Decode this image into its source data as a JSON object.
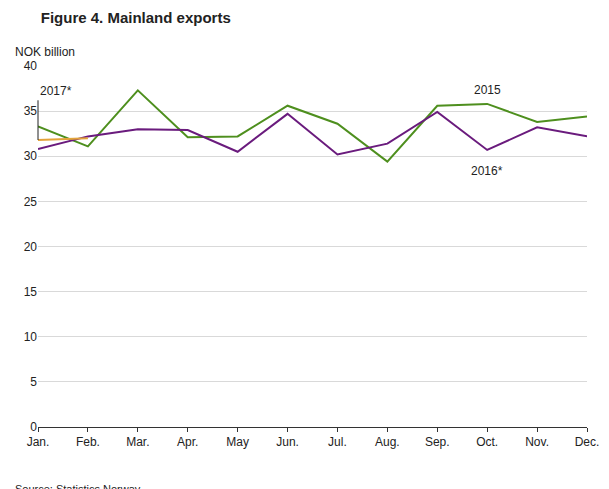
{
  "chart_data": {
    "type": "line",
    "title": "Figure 4. Mainland exports",
    "y_label": "NOK billion",
    "source": "Source: Statistics Norway.",
    "categories": [
      "Jan.",
      "Feb.",
      "Mar.",
      "Apr.",
      "May",
      "Jun.",
      "Jul.",
      "Aug.",
      "Sep.",
      "Oct.",
      "Nov.",
      "Dec."
    ],
    "series": [
      {
        "name": "2015",
        "color": "#4e8f1e",
        "values": [
          33.3,
          31.1,
          37.3,
          32.1,
          32.2,
          35.6,
          33.6,
          29.4,
          35.6,
          35.8,
          33.8,
          34.4
        ]
      },
      {
        "name": "2016*",
        "color": "#6a1b7d",
        "values": [
          30.8,
          32.2,
          33.0,
          32.9,
          30.5,
          34.7,
          30.2,
          31.4,
          34.9,
          30.7,
          33.2,
          32.2
        ]
      },
      {
        "name": "2017*",
        "color": "#e3a33b",
        "values": [
          31.8,
          32.0,
          null,
          null,
          null,
          null,
          null,
          null,
          null,
          null,
          null,
          null
        ]
      }
    ],
    "annotations": [
      {
        "text": "2015",
        "x": "Oct.",
        "y": 37.3
      },
      {
        "text": "2016*",
        "x": "Oct.",
        "y": 28.4
      },
      {
        "text": "2017*",
        "x": "Jan.",
        "y": 36.2,
        "arrow_to": 31.8
      }
    ],
    "ylim": [
      0,
      40
    ],
    "yticks": [
      0,
      5,
      10,
      15,
      20,
      25,
      30,
      35,
      40
    ],
    "grid": true
  }
}
